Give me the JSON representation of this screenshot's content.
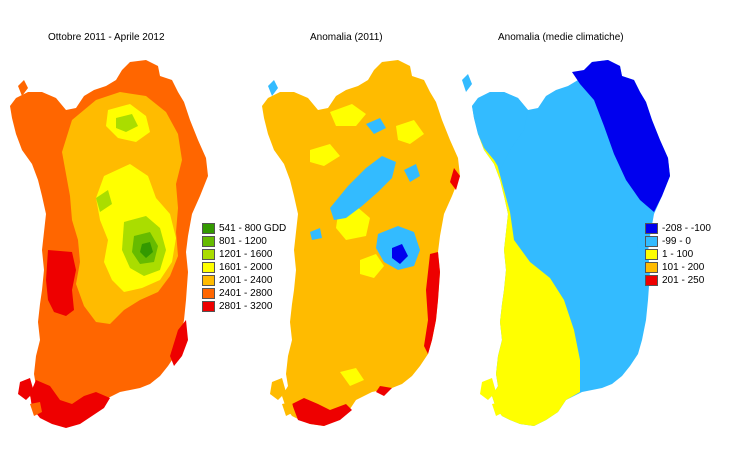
{
  "maps": [
    {
      "title": "Ottobre 2011 - Aprile 2012",
      "legend": [
        {
          "label": "541 - 800 GDD",
          "color": "#339900"
        },
        {
          "label": "801 - 1200",
          "color": "#66bb00"
        },
        {
          "label": "1201 - 1600",
          "color": "#aadd00"
        },
        {
          "label": "1601 - 2000",
          "color": "#ffff00"
        },
        {
          "label": "2001 - 2400",
          "color": "#ffbb00"
        },
        {
          "label": "2401 - 2800",
          "color": "#ff6600"
        },
        {
          "label": "2801 - 3200",
          "color": "#ee0000"
        }
      ]
    },
    {
      "title": "Anomalia (2011)",
      "legend": []
    },
    {
      "title": "Anomalia (medie climatiche)",
      "legend": [
        {
          "label": "-208 - -100",
          "color": "#0000ee"
        },
        {
          "label": "-99 - 0",
          "color": "#33bbff"
        },
        {
          "label": "1 - 100",
          "color": "#ffff00"
        },
        {
          "label": "101 - 200",
          "color": "#ffbb00"
        },
        {
          "label": "201 - 250",
          "color": "#ee0000"
        }
      ]
    }
  ]
}
